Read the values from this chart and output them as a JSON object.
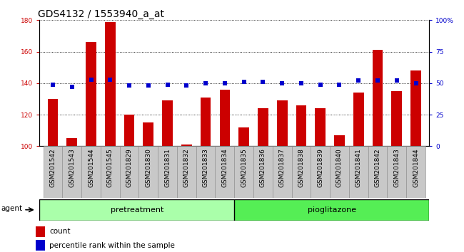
{
  "title": "GDS4132 / 1553940_a_at",
  "samples": [
    "GSM201542",
    "GSM201543",
    "GSM201544",
    "GSM201545",
    "GSM201829",
    "GSM201830",
    "GSM201831",
    "GSM201832",
    "GSM201833",
    "GSM201834",
    "GSM201835",
    "GSM201836",
    "GSM201837",
    "GSM201838",
    "GSM201839",
    "GSM201840",
    "GSM201841",
    "GSM201842",
    "GSM201843",
    "GSM201844"
  ],
  "counts": [
    130,
    105,
    166,
    179,
    120,
    115,
    129,
    101,
    131,
    136,
    112,
    124,
    129,
    126,
    124,
    107,
    134,
    161,
    135,
    148
  ],
  "percentiles": [
    49,
    47,
    53,
    53,
    48,
    48,
    49,
    48,
    50,
    50,
    51,
    51,
    50,
    50,
    49,
    49,
    52,
    52,
    52,
    50
  ],
  "pretreatment_count": 10,
  "pioglitazone_count": 10,
  "bar_color": "#cc0000",
  "dot_color": "#0000cc",
  "ylim_left": [
    100,
    180
  ],
  "ylim_right": [
    0,
    100
  ],
  "yticks_left": [
    100,
    120,
    140,
    160,
    180
  ],
  "yticks_right": [
    0,
    25,
    50,
    75,
    100
  ],
  "ytick_labels_right": [
    "0",
    "25",
    "50",
    "75",
    "100%"
  ],
  "agent_label": "agent",
  "group1_label": "pretreatment",
  "group2_label": "pioglitazone",
  "legend_count_label": "count",
  "legend_pct_label": "percentile rank within the sample",
  "group1_color": "#aaffaa",
  "group2_color": "#55ee55",
  "title_fontsize": 10,
  "tick_fontsize": 6.5,
  "dot_size": 18,
  "bar_width": 0.55
}
